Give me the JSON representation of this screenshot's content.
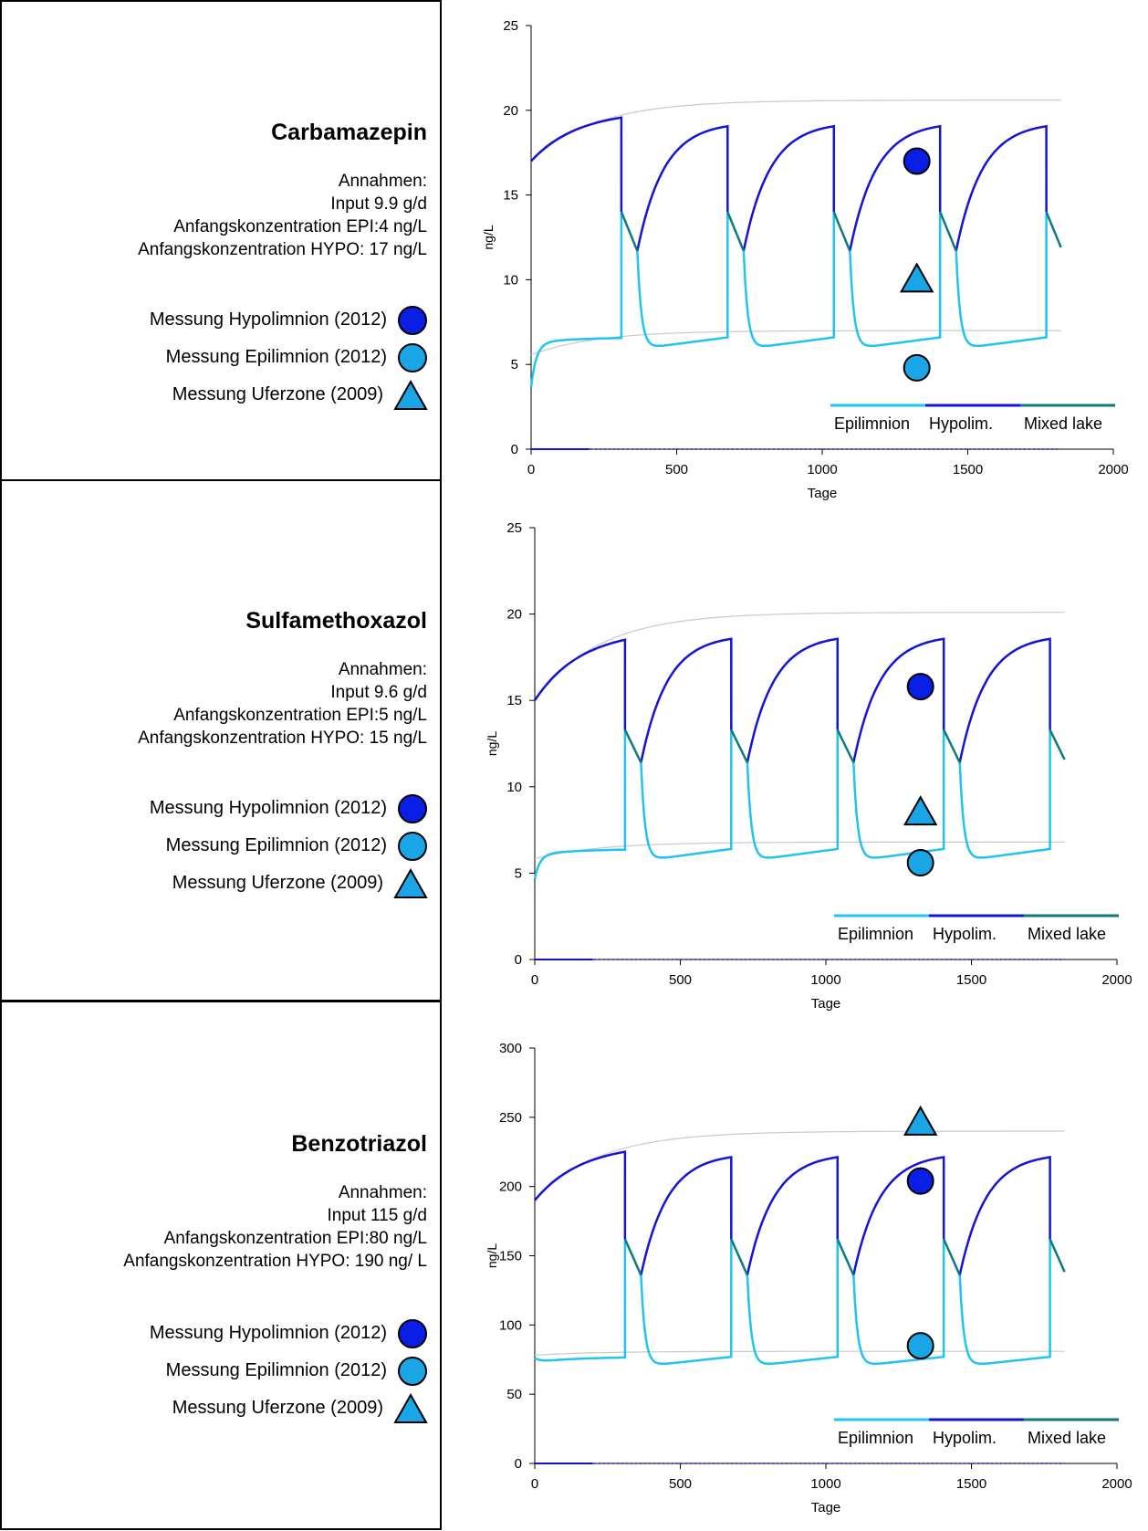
{
  "legend": {
    "hypo": "Messung Hypolimnion (2012)",
    "epi": "Messung Epilimnion (2012)",
    "ufer": "Messung Uferzone (2009)"
  },
  "colors": {
    "epilimnion": "#1fc4f0",
    "hypolimnion": "#1414d6",
    "mixed": "#0f7a7a",
    "hypo_marker": "#0a1ee6",
    "epi_marker": "#1aa6e6",
    "ufer_marker": "#1aa6e6",
    "equilibrium": "#c8c8c8"
  },
  "panels": [
    {
      "title": "Carbamazepin",
      "assumptions_heading": "Annahmen:",
      "assumptions": [
        "Input 9.9 g/d",
        "Anfangskonzentration EPI:4 ng/L",
        "Anfangskonzentration HYPO: 17 ng/L"
      ],
      "chart_data": {
        "type": "line",
        "xlabel": "Tage",
        "ylabel": "ng/L",
        "xlim": [
          0,
          2000
        ],
        "ylim": [
          0,
          25
        ],
        "xticks": [
          0,
          500,
          1000,
          1500,
          2000
        ],
        "yticks": [
          0,
          5,
          10,
          15,
          20,
          25
        ],
        "series_legend": [
          "Epilimnion",
          "Hypolim.",
          "Mixed lake"
        ],
        "equilibrium": {
          "hypo": 20.6,
          "epi": 7.0
        },
        "hypo_start": 17,
        "epi_start": 4,
        "hypo_peak": 19.3,
        "first_hypo_peak": 20.0,
        "mixed_start": 14.0,
        "mixed_end": 11.7,
        "epi_plateau": 6.6,
        "epi_trough": 5.9,
        "measurements": {
          "hypo": {
            "x": 1325,
            "y": 17.0
          },
          "epi": {
            "x": 1325,
            "y": 4.8
          },
          "ufer": {
            "x": 1325,
            "y": 10.0
          }
        }
      }
    },
    {
      "title": "Sulfamethoxazol",
      "assumptions_heading": "Annahmen:",
      "assumptions": [
        "Input 9.6 g/d",
        "Anfangskonzentration EPI:5 ng/L",
        "Anfangskonzentration HYPO: 15 ng/L"
      ],
      "chart_data": {
        "type": "line",
        "xlabel": "Tage",
        "ylabel": "ng/L",
        "xlim": [
          0,
          2000
        ],
        "ylim": [
          0,
          25
        ],
        "xticks": [
          0,
          500,
          1000,
          1500,
          2000
        ],
        "yticks": [
          0,
          5,
          10,
          15,
          20,
          25
        ],
        "series_legend": [
          "Epilimnion",
          "Hypolim.",
          "Mixed lake"
        ],
        "equilibrium": {
          "hypo": 20.1,
          "epi": 6.8
        },
        "hypo_start": 15,
        "epi_start": 5,
        "hypo_peak": 18.8,
        "first_hypo_peak": 19.1,
        "mixed_start": 13.3,
        "mixed_end": 11.4,
        "epi_plateau": 6.4,
        "epi_trough": 5.7,
        "measurements": {
          "hypo": {
            "x": 1325,
            "y": 15.8
          },
          "epi": {
            "x": 1325,
            "y": 5.6
          },
          "ufer": {
            "x": 1325,
            "y": 8.5
          }
        }
      }
    },
    {
      "title": "Benzotriazol",
      "assumptions_heading": "Annahmen:",
      "assumptions": [
        "Input 115 g/d",
        "Anfangskonzentration EPI:80 ng/L",
        "Anfangskonzentration HYPO: 190 ng/ L"
      ],
      "chart_data": {
        "type": "line",
        "xlabel": "Tage",
        "ylabel": "ng/L",
        "xlim": [
          0,
          2000
        ],
        "ylim": [
          0,
          300
        ],
        "xticks": [
          0,
          500,
          1000,
          1500,
          2000
        ],
        "yticks": [
          0,
          50,
          100,
          150,
          200,
          250,
          300
        ],
        "series_legend": [
          "Epilimnion",
          "Hypolim.",
          "Mixed lake"
        ],
        "equilibrium": {
          "hypo": 240,
          "epi": 81
        },
        "hypo_start": 190,
        "epi_start": 80,
        "hypo_peak": 224,
        "first_hypo_peak": 231,
        "mixed_start": 162,
        "mixed_end": 136,
        "epi_plateau": 77,
        "epi_trough": 70,
        "measurements": {
          "hypo": {
            "x": 1325,
            "y": 204
          },
          "epi": {
            "x": 1325,
            "y": 85
          },
          "ufer": {
            "x": 1325,
            "y": 246
          }
        }
      }
    }
  ]
}
